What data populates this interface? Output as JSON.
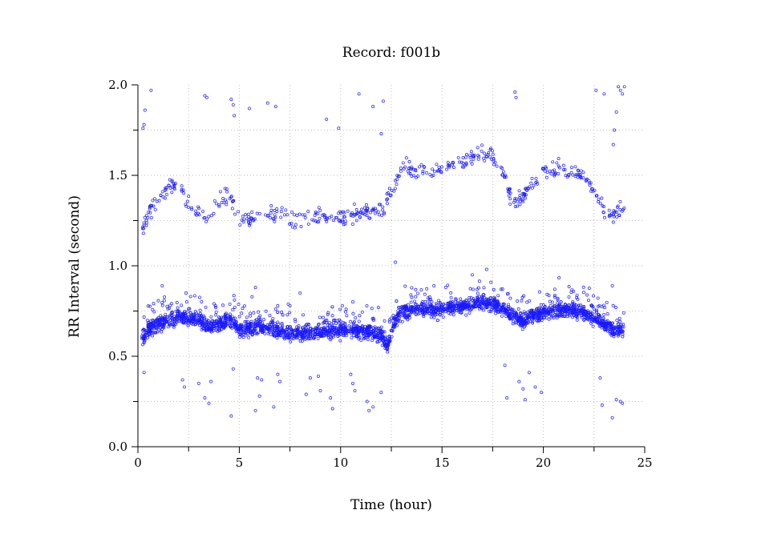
{
  "chart_data": {
    "type": "scatter",
    "title": "Record:  f001b",
    "xlabel": "Time (hour)",
    "ylabel": "RR Interval (second)",
    "xlim": [
      0,
      25
    ],
    "ylim": [
      0.0,
      2.0
    ],
    "x_ticks": [
      "0",
      "5",
      "10",
      "15",
      "20",
      "25"
    ],
    "y_ticks": [
      "0.0",
      "0.5",
      "1.0",
      "1.5",
      "2.0"
    ],
    "grid": true,
    "marker": "open-circle",
    "point_color": "#1a1aff",
    "series": [
      {
        "values": {
          "main_band_trend": [
            [
              0.2,
              0.6
            ],
            [
              0.5,
              0.65
            ],
            [
              1.0,
              0.68
            ],
            [
              1.5,
              0.7
            ],
            [
              2.0,
              0.72
            ],
            [
              2.5,
              0.71
            ],
            [
              3.0,
              0.7
            ],
            [
              3.5,
              0.66
            ],
            [
              4.0,
              0.68
            ],
            [
              4.6,
              0.7
            ],
            [
              5.0,
              0.64
            ],
            [
              6.0,
              0.67
            ],
            [
              7.0,
              0.64
            ],
            [
              8.0,
              0.62
            ],
            [
              9.0,
              0.64
            ],
            [
              10.0,
              0.65
            ],
            [
              11.0,
              0.64
            ],
            [
              12.0,
              0.62
            ],
            [
              12.3,
              0.55
            ],
            [
              12.6,
              0.68
            ],
            [
              13.0,
              0.75
            ],
            [
              14.0,
              0.76
            ],
            [
              15.0,
              0.76
            ],
            [
              16.0,
              0.78
            ],
            [
              17.0,
              0.8
            ],
            [
              17.8,
              0.78
            ],
            [
              18.5,
              0.72
            ],
            [
              19.0,
              0.7
            ],
            [
              20.0,
              0.74
            ],
            [
              21.0,
              0.76
            ],
            [
              22.0,
              0.74
            ],
            [
              23.0,
              0.68
            ],
            [
              23.5,
              0.64
            ],
            [
              24.0,
              0.66
            ]
          ],
          "upper_band_trend": [
            [
              0.2,
              1.18
            ],
            [
              0.5,
              1.3
            ],
            [
              1.0,
              1.38
            ],
            [
              1.5,
              1.44
            ],
            [
              2.0,
              1.45
            ],
            [
              2.4,
              1.36
            ],
            [
              3.0,
              1.3
            ],
            [
              3.5,
              1.25
            ],
            [
              4.0,
              1.36
            ],
            [
              4.5,
              1.4
            ],
            [
              5.0,
              1.24
            ],
            [
              6.0,
              1.28
            ],
            [
              7.0,
              1.28
            ],
            [
              8.0,
              1.24
            ],
            [
              9.0,
              1.28
            ],
            [
              10.0,
              1.26
            ],
            [
              11.0,
              1.3
            ],
            [
              12.0,
              1.3
            ],
            [
              12.5,
              1.4
            ],
            [
              13.0,
              1.55
            ],
            [
              14.0,
              1.52
            ],
            [
              15.0,
              1.53
            ],
            [
              16.0,
              1.58
            ],
            [
              17.0,
              1.62
            ],
            [
              17.8,
              1.58
            ],
            [
              18.5,
              1.35
            ],
            [
              19.0,
              1.4
            ],
            [
              20.0,
              1.52
            ],
            [
              21.0,
              1.54
            ],
            [
              22.0,
              1.5
            ],
            [
              23.0,
              1.3
            ],
            [
              23.5,
              1.28
            ],
            [
              24.0,
              1.32
            ]
          ],
          "outliers": [
            [
              0.25,
              1.76
            ],
            [
              0.3,
              1.78
            ],
            [
              0.35,
              1.86
            ],
            [
              0.65,
              1.97
            ],
            [
              3.3,
              1.94
            ],
            [
              3.4,
              1.93
            ],
            [
              4.6,
              1.92
            ],
            [
              4.7,
              1.89
            ],
            [
              4.75,
              1.83
            ],
            [
              5.5,
              1.87
            ],
            [
              6.4,
              1.9
            ],
            [
              6.8,
              1.88
            ],
            [
              9.3,
              1.81
            ],
            [
              9.9,
              1.76
            ],
            [
              10.9,
              1.95
            ],
            [
              11.6,
              1.88
            ],
            [
              12.1,
              1.91
            ],
            [
              12.0,
              1.73
            ],
            [
              18.6,
              1.96
            ],
            [
              18.65,
              1.93
            ],
            [
              22.6,
              1.97
            ],
            [
              23.0,
              1.95
            ],
            [
              23.45,
              1.67
            ],
            [
              23.5,
              1.75
            ],
            [
              23.6,
              1.85
            ],
            [
              23.7,
              1.99
            ],
            [
              23.8,
              1.97
            ],
            [
              23.9,
              1.95
            ],
            [
              24.0,
              1.99
            ],
            [
              0.3,
              0.41
            ],
            [
              2.2,
              0.37
            ],
            [
              2.3,
              0.33
            ],
            [
              3.0,
              0.35
            ],
            [
              3.3,
              0.27
            ],
            [
              3.5,
              0.24
            ],
            [
              3.6,
              0.36
            ],
            [
              4.6,
              0.17
            ],
            [
              4.7,
              0.43
            ],
            [
              5.8,
              0.2
            ],
            [
              5.9,
              0.38
            ],
            [
              6.0,
              0.28
            ],
            [
              6.1,
              0.37
            ],
            [
              6.7,
              0.22
            ],
            [
              6.9,
              0.4
            ],
            [
              7.0,
              0.36
            ],
            [
              8.3,
              0.29
            ],
            [
              8.5,
              0.38
            ],
            [
              8.9,
              0.39
            ],
            [
              9.0,
              0.31
            ],
            [
              9.5,
              0.27
            ],
            [
              9.6,
              0.21
            ],
            [
              10.5,
              0.4
            ],
            [
              10.6,
              0.35
            ],
            [
              10.7,
              0.31
            ],
            [
              11.3,
              0.25
            ],
            [
              11.4,
              0.2
            ],
            [
              11.6,
              0.22
            ],
            [
              12.0,
              0.3
            ],
            [
              18.1,
              0.45
            ],
            [
              18.2,
              0.27
            ],
            [
              18.8,
              0.36
            ],
            [
              19.0,
              0.32
            ],
            [
              19.1,
              0.26
            ],
            [
              19.3,
              0.41
            ],
            [
              19.6,
              0.33
            ],
            [
              19.9,
              0.3
            ],
            [
              22.8,
              0.38
            ],
            [
              22.9,
              0.23
            ],
            [
              23.4,
              0.16
            ],
            [
              23.6,
              0.26
            ],
            [
              23.8,
              0.25
            ],
            [
              23.9,
              0.24
            ],
            [
              1.2,
              0.89
            ],
            [
              2.6,
              0.83
            ],
            [
              5.8,
              0.88
            ],
            [
              8.0,
              0.85
            ],
            [
              12.7,
              1.02
            ],
            [
              16.5,
              0.95
            ],
            [
              17.2,
              0.98
            ],
            [
              23.4,
              0.89
            ]
          ]
        }
      }
    ]
  }
}
